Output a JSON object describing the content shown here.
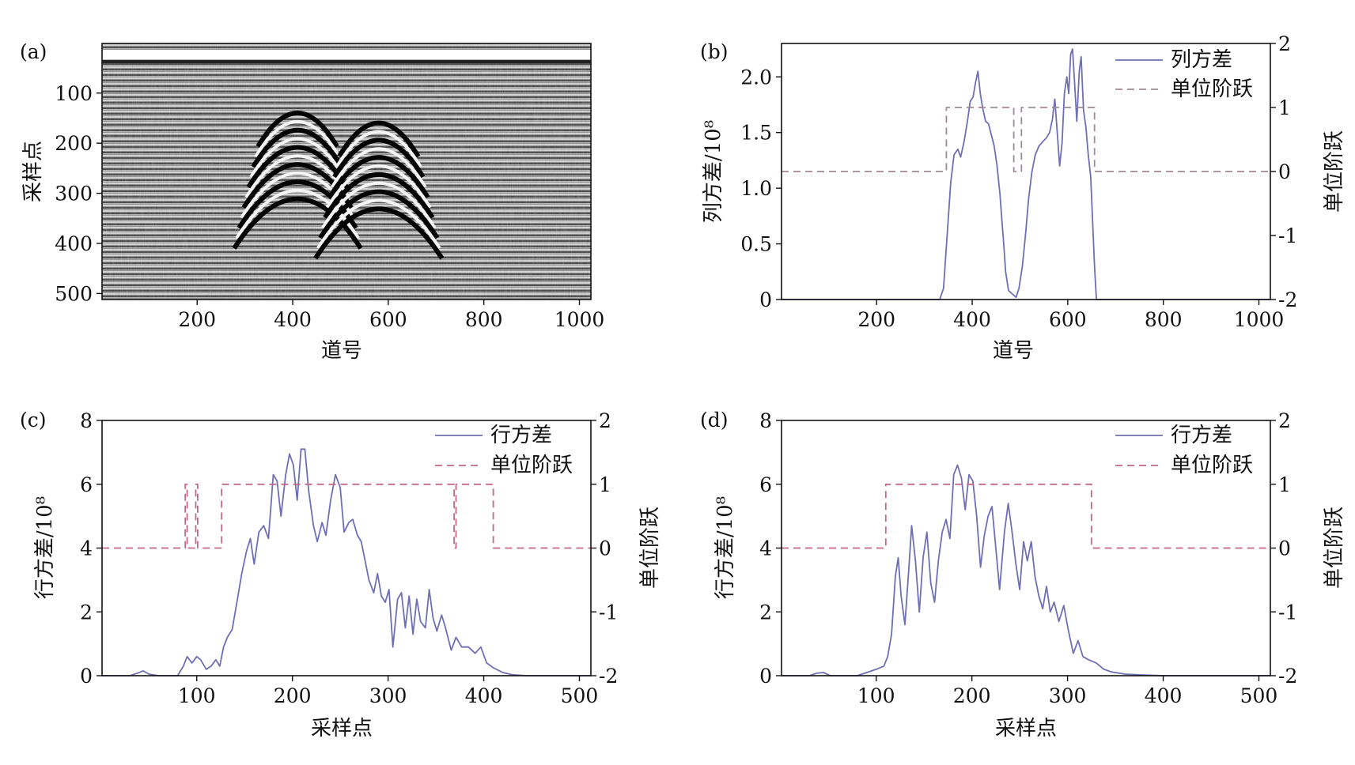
{
  "chart_data": [
    {
      "panel_label": "(a)",
      "type": "heatmap",
      "description_type": "radar-profile image",
      "xlabel": "道号",
      "ylabel": "采样点",
      "xlim": [
        1,
        1024
      ],
      "ylim": [
        512,
        1
      ],
      "xticks": [
        200,
        400,
        600,
        800,
        1000
      ],
      "yticks": [
        100,
        200,
        300,
        400,
        500
      ],
      "colormap": "gray"
    },
    {
      "panel_label": "(b)",
      "type": "line",
      "xlabel": "道号",
      "ylabel": "列方差/10⁸",
      "y2label": "单位阶跃",
      "xlim": [
        1,
        1024
      ],
      "ylim": [
        0,
        2.3
      ],
      "y2lim": [
        -2,
        2
      ],
      "xticks": [
        200,
        400,
        600,
        800,
        1000
      ],
      "yticks": [
        "0",
        "0.5",
        "1.0",
        "1.5",
        "2.0"
      ],
      "y2ticks": [
        "-2",
        "-1",
        "0",
        "1",
        "2"
      ],
      "legend_position": "top-right",
      "series": [
        {
          "name": "列方差",
          "axis": "left",
          "style": "solid",
          "color": "#6f6fb4",
          "points": [
            [
              1,
              0
            ],
            [
              320,
              0
            ],
            [
              332,
              0
            ],
            [
              340,
              0.1
            ],
            [
              348,
              0.6
            ],
            [
              355,
              1.05
            ],
            [
              362,
              1.3
            ],
            [
              370,
              1.35
            ],
            [
              376,
              1.28
            ],
            [
              383,
              1.42
            ],
            [
              390,
              1.6
            ],
            [
              396,
              1.78
            ],
            [
              402,
              1.82
            ],
            [
              407,
              1.95
            ],
            [
              412,
              2.05
            ],
            [
              417,
              1.85
            ],
            [
              422,
              1.72
            ],
            [
              428,
              1.6
            ],
            [
              434,
              1.58
            ],
            [
              440,
              1.48
            ],
            [
              446,
              1.38
            ],
            [
              452,
              1.2
            ],
            [
              458,
              0.95
            ],
            [
              462,
              0.72
            ],
            [
              466,
              0.5
            ],
            [
              470,
              0.25
            ],
            [
              476,
              0.08
            ],
            [
              484,
              0.05
            ],
            [
              492,
              0.02
            ],
            [
              498,
              0.1
            ],
            [
              505,
              0.3
            ],
            [
              512,
              0.6
            ],
            [
              518,
              0.9
            ],
            [
              525,
              1.15
            ],
            [
              532,
              1.3
            ],
            [
              540,
              1.38
            ],
            [
              548,
              1.42
            ],
            [
              555,
              1.45
            ],
            [
              562,
              1.5
            ],
            [
              568,
              1.62
            ],
            [
              573,
              1.8
            ],
            [
              578,
              1.5
            ],
            [
              583,
              1.2
            ],
            [
              588,
              1.4
            ],
            [
              593,
              1.85
            ],
            [
              598,
              2.0
            ],
            [
              602,
              1.85
            ],
            [
              606,
              2.2
            ],
            [
              610,
              2.25
            ],
            [
              615,
              1.9
            ],
            [
              619,
              1.6
            ],
            [
              624,
              2.05
            ],
            [
              628,
              2.18
            ],
            [
              633,
              1.7
            ],
            [
              638,
              1.55
            ],
            [
              643,
              1.3
            ],
            [
              648,
              1.1
            ],
            [
              652,
              0.7
            ],
            [
              656,
              0.3
            ],
            [
              660,
              0
            ],
            [
              1024,
              0
            ]
          ]
        },
        {
          "name": "单位阶跃",
          "axis": "right",
          "style": "dashed",
          "color": "#a08a98",
          "points": [
            [
              1,
              0
            ],
            [
              346,
              0
            ],
            [
              346,
              1
            ],
            [
              487,
              1
            ],
            [
              487,
              0
            ],
            [
              503,
              0
            ],
            [
              503,
              1
            ],
            [
              656,
              1
            ],
            [
              656,
              0
            ],
            [
              1024,
              0
            ]
          ]
        }
      ]
    },
    {
      "panel_label": "(c)",
      "type": "line",
      "xlabel": "采样点",
      "ylabel": "行方差/10⁸",
      "y2label": "单位阶跃",
      "xlim": [
        1,
        512
      ],
      "ylim": [
        0,
        8
      ],
      "y2lim": [
        -2,
        2
      ],
      "xticks": [
        100,
        200,
        300,
        400,
        500
      ],
      "yticks": [
        "0",
        "2",
        "4",
        "6",
        "8"
      ],
      "y2ticks": [
        "-2",
        "-1",
        "0",
        "1",
        "2"
      ],
      "legend_position": "top-right",
      "series": [
        {
          "name": "行方差",
          "axis": "left",
          "style": "solid",
          "color": "#6f6fb4",
          "points": [
            [
              1,
              0
            ],
            [
              30,
              0
            ],
            [
              38,
              0.08
            ],
            [
              44,
              0.15
            ],
            [
              50,
              0.05
            ],
            [
              60,
              0
            ],
            [
              80,
              0
            ],
            [
              86,
              0.3
            ],
            [
              90,
              0.6
            ],
            [
              95,
              0.4
            ],
            [
              100,
              0.6
            ],
            [
              104,
              0.5
            ],
            [
              110,
              0.2
            ],
            [
              115,
              0.3
            ],
            [
              120,
              0.5
            ],
            [
              124,
              0.3
            ],
            [
              128,
              0.9
            ],
            [
              132,
              1.2
            ],
            [
              137,
              1.45
            ],
            [
              142,
              2.3
            ],
            [
              147,
              3.2
            ],
            [
              152,
              3.9
            ],
            [
              156,
              4.3
            ],
            [
              160,
              3.5
            ],
            [
              165,
              4.5
            ],
            [
              170,
              4.7
            ],
            [
              175,
              4.3
            ],
            [
              180,
              6.3
            ],
            [
              184,
              6.1
            ],
            [
              188,
              5.0
            ],
            [
              193,
              6.3
            ],
            [
              197,
              6.95
            ],
            [
              201,
              6.6
            ],
            [
              205,
              5.5
            ],
            [
              209,
              7.1
            ],
            [
              213,
              7.1
            ],
            [
              217,
              5.8
            ],
            [
              222,
              4.7
            ],
            [
              226,
              4.2
            ],
            [
              231,
              4.8
            ],
            [
              235,
              4.4
            ],
            [
              240,
              5.5
            ],
            [
              245,
              6.3
            ],
            [
              250,
              5.9
            ],
            [
              254,
              4.5
            ],
            [
              259,
              4.8
            ],
            [
              263,
              4.9
            ],
            [
              268,
              4.4
            ],
            [
              272,
              4.2
            ],
            [
              276,
              3.6
            ],
            [
              280,
              3.0
            ],
            [
              285,
              2.6
            ],
            [
              289,
              3.2
            ],
            [
              293,
              2.5
            ],
            [
              297,
              2.3
            ],
            [
              301,
              2.7
            ],
            [
              305,
              0.9
            ],
            [
              310,
              2.4
            ],
            [
              314,
              2.6
            ],
            [
              318,
              1.5
            ],
            [
              322,
              2.5
            ],
            [
              326,
              1.3
            ],
            [
              330,
              2.4
            ],
            [
              334,
              1.7
            ],
            [
              339,
              1.5
            ],
            [
              343,
              2.7
            ],
            [
              347,
              1.8
            ],
            [
              351,
              1.4
            ],
            [
              356,
              1.9
            ],
            [
              360,
              1.5
            ],
            [
              366,
              0.8
            ],
            [
              371,
              1.2
            ],
            [
              377,
              0.9
            ],
            [
              384,
              0.9
            ],
            [
              391,
              0.7
            ],
            [
              397,
              0.9
            ],
            [
              403,
              0.4
            ],
            [
              410,
              0.25
            ],
            [
              420,
              0.1
            ],
            [
              430,
              0.03
            ],
            [
              445,
              0
            ],
            [
              512,
              0
            ]
          ]
        },
        {
          "name": "单位阶跃",
          "axis": "right",
          "style": "dashed",
          "color": "#c06a84",
          "points": [
            [
              1,
              0
            ],
            [
              88,
              0
            ],
            [
              88,
              1
            ],
            [
              90,
              1
            ],
            [
              90,
              0
            ],
            [
              99,
              0
            ],
            [
              99,
              1
            ],
            [
              101,
              1
            ],
            [
              101,
              0
            ],
            [
              126,
              0
            ],
            [
              126,
              1
            ],
            [
              369,
              1
            ],
            [
              369,
              0
            ],
            [
              371,
              0
            ],
            [
              371,
              1
            ],
            [
              410,
              1
            ],
            [
              410,
              0
            ],
            [
              512,
              0
            ]
          ]
        }
      ]
    },
    {
      "panel_label": "(d)",
      "type": "line",
      "xlabel": "采样点",
      "ylabel": "行方差/10⁸",
      "y2label": "单位阶跃",
      "xlim": [
        1,
        512
      ],
      "ylim": [
        0,
        8
      ],
      "y2lim": [
        -2,
        2
      ],
      "xticks": [
        100,
        200,
        300,
        400,
        500
      ],
      "yticks": [
        "0",
        "2",
        "4",
        "6",
        "8"
      ],
      "y2ticks": [
        "-2",
        "-1",
        "0",
        "1",
        "2"
      ],
      "legend_position": "top-right",
      "series": [
        {
          "name": "行方差",
          "axis": "left",
          "style": "solid",
          "color": "#6f6fb4",
          "points": [
            [
              1,
              0
            ],
            [
              30,
              0
            ],
            [
              38,
              0.08
            ],
            [
              45,
              0.1
            ],
            [
              52,
              0
            ],
            [
              80,
              0
            ],
            [
              90,
              0.1
            ],
            [
              100,
              0.2
            ],
            [
              108,
              0.3
            ],
            [
              112,
              0.6
            ],
            [
              116,
              1.3
            ],
            [
              120,
              3.1
            ],
            [
              123,
              3.7
            ],
            [
              126,
              2.5
            ],
            [
              130,
              1.6
            ],
            [
              134,
              3.3
            ],
            [
              137,
              4.7
            ],
            [
              141,
              3.6
            ],
            [
              145,
              2.0
            ],
            [
              149,
              3.7
            ],
            [
              153,
              4.5
            ],
            [
              157,
              2.9
            ],
            [
              161,
              2.3
            ],
            [
              165,
              3.6
            ],
            [
              169,
              4.5
            ],
            [
              173,
              4.9
            ],
            [
              177,
              4.3
            ],
            [
              181,
              6.3
            ],
            [
              185,
              6.6
            ],
            [
              189,
              6.2
            ],
            [
              193,
              5.2
            ],
            [
              197,
              6.3
            ],
            [
              201,
              6.1
            ],
            [
              205,
              5.0
            ],
            [
              209,
              3.4
            ],
            [
              213,
              4.4
            ],
            [
              217,
              5.0
            ],
            [
              221,
              5.3
            ],
            [
              225,
              4.0
            ],
            [
              229,
              2.7
            ],
            [
              234,
              4.5
            ],
            [
              238,
              5.4
            ],
            [
              242,
              4.5
            ],
            [
              246,
              3.5
            ],
            [
              250,
              2.7
            ],
            [
              254,
              4.2
            ],
            [
              258,
              3.6
            ],
            [
              262,
              4.2
            ],
            [
              266,
              3.1
            ],
            [
              270,
              2.5
            ],
            [
              274,
              2.1
            ],
            [
              278,
              2.8
            ],
            [
              282,
              2.0
            ],
            [
              286,
              2.3
            ],
            [
              291,
              1.7
            ],
            [
              296,
              2.2
            ],
            [
              301,
              1.4
            ],
            [
              306,
              0.7
            ],
            [
              311,
              1.1
            ],
            [
              316,
              0.6
            ],
            [
              322,
              0.5
            ],
            [
              330,
              0.4
            ],
            [
              338,
              0.2
            ],
            [
              346,
              0.12
            ],
            [
              360,
              0.05
            ],
            [
              380,
              0.02
            ],
            [
              400,
              0
            ],
            [
              512,
              0
            ]
          ]
        },
        {
          "name": "单位阶跃",
          "axis": "right",
          "style": "dashed",
          "color": "#c06a84",
          "points": [
            [
              1,
              0
            ],
            [
              110,
              0
            ],
            [
              110,
              1
            ],
            [
              325,
              1
            ],
            [
              325,
              0
            ],
            [
              512,
              0
            ]
          ]
        }
      ]
    }
  ]
}
